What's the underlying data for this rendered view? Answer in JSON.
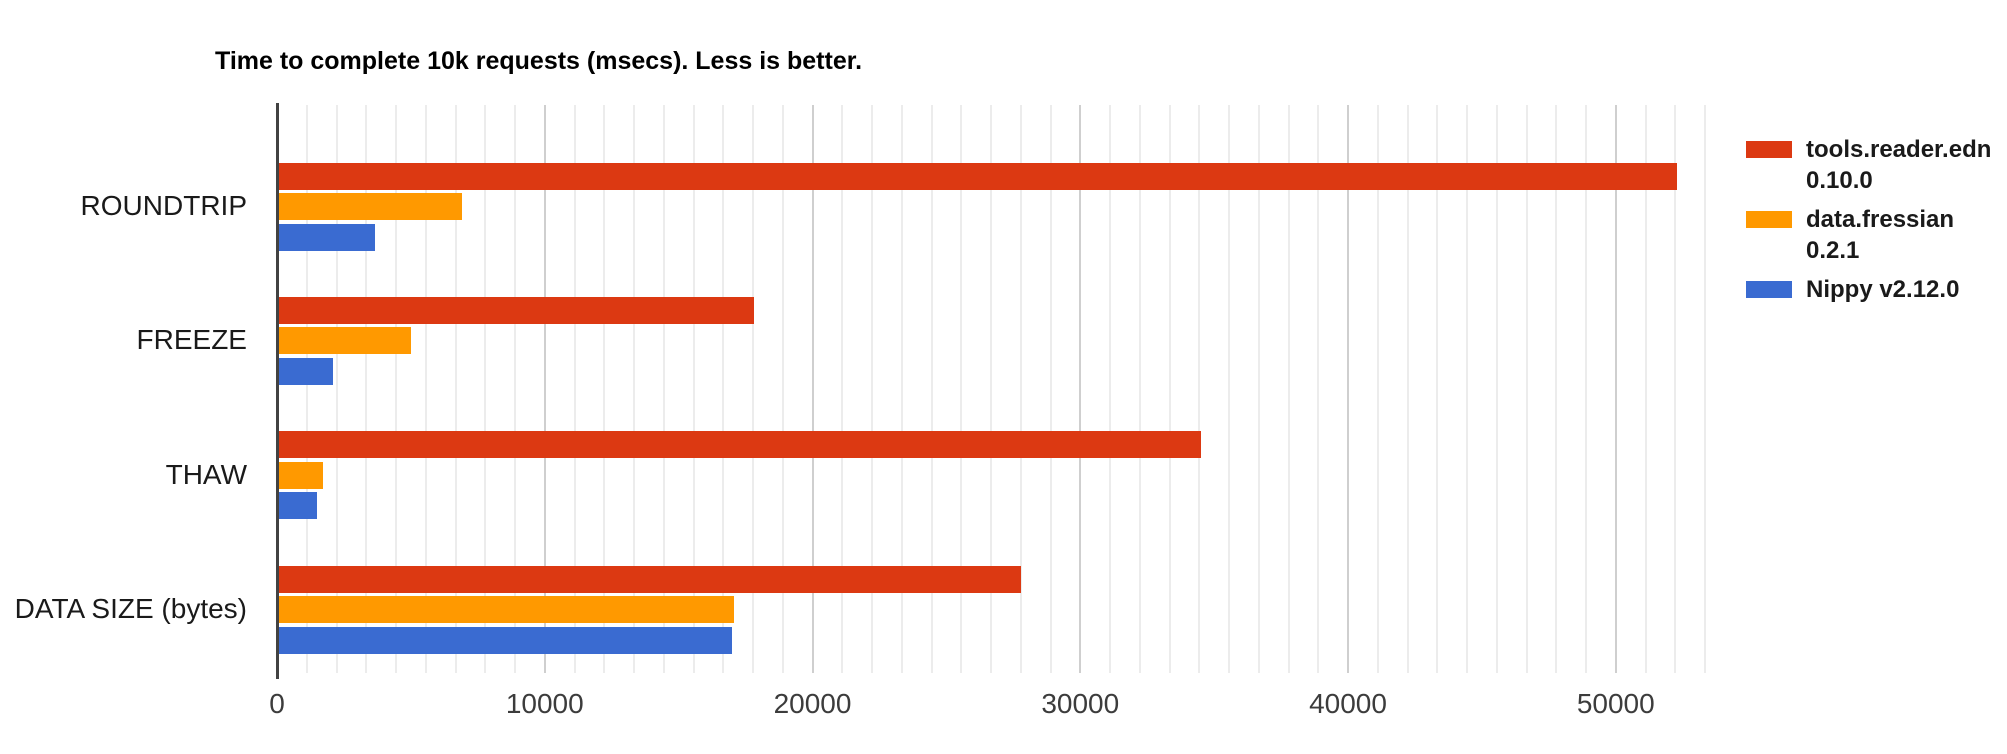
{
  "title": "Time to complete 10k requests (msecs). Less is better.",
  "chart_data": {
    "type": "bar",
    "orientation": "horizontal",
    "title": "Time to complete 10k requests (msecs). Less is better.",
    "categories": [
      "ROUNDTRIP",
      "FREEZE",
      "THAW",
      "DATA SIZE (bytes)"
    ],
    "series": [
      {
        "name": "tools.reader.edn 0.10.0",
        "label_lines": [
          "tools.reader.edn",
          "0.10.0"
        ],
        "color": "#DC3912",
        "values": [
          52300,
          17800,
          34500,
          27800
        ]
      },
      {
        "name": "data.fressian 0.2.1",
        "label_lines": [
          "data.fressian",
          "0.2.1"
        ],
        "color": "#FF9900",
        "values": [
          6900,
          5000,
          1710,
          17050
        ]
      },
      {
        "name": "Nippy v2.12.0",
        "label_lines": [
          "Nippy v2.12.0"
        ],
        "color": "#3A6BD1",
        "values": [
          3670,
          2080,
          1500,
          17000
        ]
      }
    ],
    "xlabel": "",
    "ylabel": "",
    "xticks": [
      0,
      10000,
      20000,
      30000,
      40000,
      50000
    ],
    "xlim": [
      0,
      53333
    ],
    "grid": "vertical",
    "gridlines": {
      "major_every": 10000,
      "minor_divisions_per_major": 9
    },
    "legend_position": "right",
    "background": "#ffffff",
    "axis_line_color": "#424242",
    "major_gridline_color": "#cfcfcf",
    "minor_gridline_color": "#ececec"
  }
}
